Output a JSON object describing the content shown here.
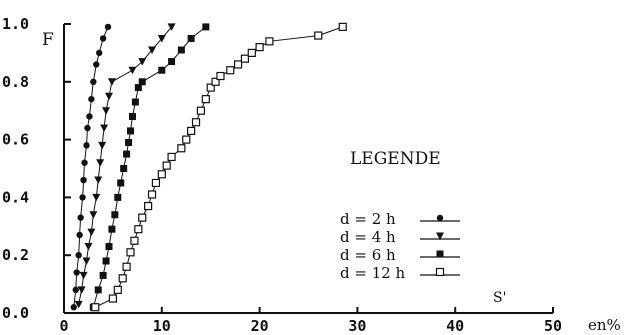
{
  "chart_data": {
    "type": "line",
    "ylabel": "F",
    "xlabel": "S'",
    "x_unit": "en%",
    "xlim": [
      0,
      50
    ],
    "ylim": [
      0,
      1.0
    ],
    "x_ticks": [
      "0",
      "10",
      "20",
      "30",
      "40",
      "50"
    ],
    "y_ticks": [
      "0.0",
      "0.2",
      "0.4",
      "0.6",
      "0.8",
      "1.0"
    ],
    "legend": {
      "title": "LEGENDE",
      "entries": [
        "d = 2 h",
        "d = 4 h",
        "d = 6 h",
        "d = 12 h"
      ]
    },
    "series": [
      {
        "name": "d = 2 h",
        "marker": "circle-filled",
        "x": [
          1.0,
          1.2,
          1.3,
          1.5,
          1.6,
          1.7,
          1.9,
          2.0,
          2.1,
          2.3,
          2.4,
          2.6,
          2.8,
          3.0,
          3.3,
          3.6,
          4.0,
          4.5
        ],
        "y": [
          0.02,
          0.08,
          0.14,
          0.2,
          0.27,
          0.33,
          0.4,
          0.46,
          0.52,
          0.58,
          0.64,
          0.68,
          0.74,
          0.8,
          0.86,
          0.9,
          0.95,
          0.99
        ]
      },
      {
        "name": "d = 4 h",
        "marker": "triangle-down-filled",
        "x": [
          1.5,
          1.8,
          2.0,
          2.3,
          2.5,
          2.8,
          3.0,
          3.3,
          3.5,
          3.7,
          3.9,
          4.1,
          4.3,
          4.6,
          4.9,
          7.0,
          8.0,
          9.0,
          10.0,
          11.0
        ],
        "y": [
          0.03,
          0.08,
          0.13,
          0.18,
          0.23,
          0.28,
          0.34,
          0.4,
          0.46,
          0.52,
          0.58,
          0.64,
          0.7,
          0.75,
          0.8,
          0.84,
          0.87,
          0.91,
          0.95,
          0.99
        ]
      },
      {
        "name": "d = 6 h",
        "marker": "square-filled",
        "x": [
          3.0,
          3.5,
          4.0,
          4.3,
          4.6,
          4.9,
          5.2,
          5.5,
          5.8,
          6.1,
          6.4,
          6.6,
          6.8,
          7.0,
          7.3,
          7.6,
          8.0,
          10.0,
          11.0,
          12.0,
          13.0,
          14.5
        ],
        "y": [
          0.02,
          0.08,
          0.13,
          0.18,
          0.23,
          0.29,
          0.34,
          0.4,
          0.45,
          0.5,
          0.55,
          0.59,
          0.63,
          0.68,
          0.73,
          0.78,
          0.8,
          0.84,
          0.87,
          0.91,
          0.95,
          0.99
        ]
      },
      {
        "name": "d = 12 h",
        "marker": "square-open",
        "x": [
          3.2,
          5.0,
          5.5,
          6.0,
          6.4,
          6.8,
          7.2,
          7.6,
          8.0,
          8.6,
          9.0,
          9.4,
          10.0,
          10.5,
          11.0,
          12.0,
          12.5,
          13.0,
          13.5,
          14.0,
          14.5,
          15.0,
          15.5,
          16.0,
          17.0,
          17.8,
          18.5,
          19.2,
          20.0,
          21.0,
          26.0,
          28.5
        ],
        "y": [
          0.02,
          0.05,
          0.08,
          0.12,
          0.16,
          0.21,
          0.25,
          0.29,
          0.33,
          0.37,
          0.41,
          0.45,
          0.48,
          0.51,
          0.54,
          0.57,
          0.6,
          0.63,
          0.66,
          0.7,
          0.74,
          0.78,
          0.8,
          0.82,
          0.84,
          0.86,
          0.88,
          0.9,
          0.92,
          0.94,
          0.96,
          0.99
        ]
      }
    ]
  }
}
